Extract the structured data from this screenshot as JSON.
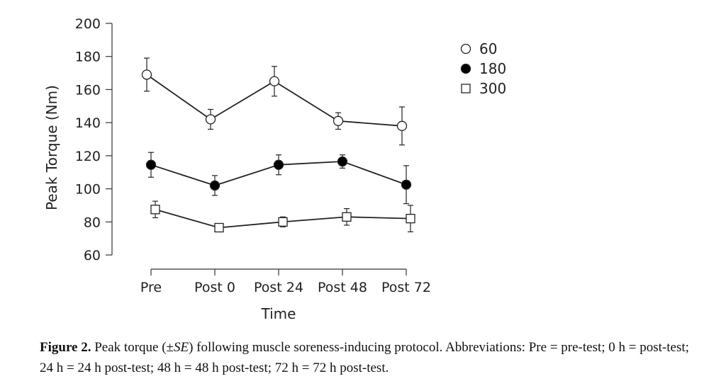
{
  "chart_data": {
    "type": "line",
    "title": "",
    "xlabel": "Time",
    "ylabel": "Peak Torque (Nm)",
    "categories": [
      "Pre",
      "Post 0",
      "Post 24",
      "Post 48",
      "Post 72"
    ],
    "ylim": [
      60,
      200
    ],
    "yticks": [
      60,
      80,
      100,
      120,
      140,
      160,
      180,
      200
    ],
    "grid": false,
    "legend_position": "top-right",
    "series": [
      {
        "name": "60",
        "marker": "open-circle",
        "values": [
          169,
          142,
          165,
          141,
          138
        ],
        "errors": [
          10,
          6,
          9,
          5,
          11.5
        ]
      },
      {
        "name": "180",
        "marker": "filled-circle",
        "values": [
          114.5,
          102,
          114.5,
          116.5,
          102.5
        ],
        "errors": [
          7.5,
          6,
          6,
          4,
          11.5
        ]
      },
      {
        "name": "300",
        "marker": "open-square",
        "values": [
          87.5,
          76.5,
          80,
          83,
          82
        ],
        "errors": [
          5,
          1.5,
          3,
          5,
          8
        ]
      }
    ]
  },
  "caption": {
    "label": "Figure 2.",
    "text_before": "Peak torque (±",
    "italic": "SE",
    "text_after": ") following muscle soreness-inducing protocol. Abbreviations: Pre = pre-test; 0 h = post-test; 24 h = 24 h post-test; 48 h = 48 h post-test; 72 h = 72 h post-test."
  }
}
